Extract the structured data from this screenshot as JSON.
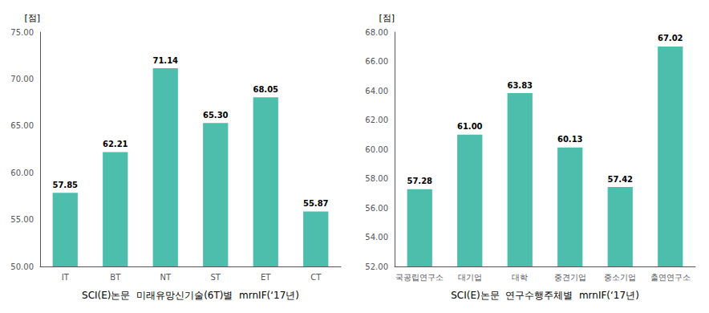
{
  "chart_data": [
    {
      "type": "bar",
      "categories": [
        "IT",
        "BT",
        "NT",
        "ST",
        "ET",
        "CT"
      ],
      "values": [
        57.85,
        62.21,
        71.14,
        65.3,
        68.05,
        55.87
      ],
      "value_labels": [
        "57.85",
        "62.21",
        "71.14",
        "65.30",
        "68.05",
        "55.87"
      ],
      "data_labels": true,
      "color": "#4DBDAC",
      "ylim": [
        50.0,
        75.0
      ],
      "yticks": [
        {
          "value": 50,
          "label": "50.00"
        },
        {
          "value": 55,
          "label": "55.00"
        },
        {
          "value": 60,
          "label": "60.00"
        },
        {
          "value": 65,
          "label": "65.00"
        },
        {
          "value": 70,
          "label": "70.00"
        },
        {
          "value": 75,
          "label": "75.00"
        }
      ],
      "ylabel": "[점]",
      "xlabel": "SCI(E)논문  미래유망신기술(6T)별  mrnIF(‘17년)",
      "grid": false
    },
    {
      "type": "bar",
      "categories": [
        "국공립연구소",
        "대기업",
        "대학",
        "중견기업",
        "중소기업",
        "출연연구소"
      ],
      "values": [
        57.28,
        61.0,
        63.83,
        60.13,
        57.42,
        67.02
      ],
      "value_labels": [
        "57.28",
        "61.00",
        "63.83",
        "60.13",
        "57.42",
        "67.02"
      ],
      "data_labels": true,
      "color": "#4DBDAC",
      "ylim": [
        52.0,
        68.0
      ],
      "yticks": [
        {
          "value": 52,
          "label": "52.00"
        },
        {
          "value": 54,
          "label": "54.00"
        },
        {
          "value": 56,
          "label": "56.00"
        },
        {
          "value": 58,
          "label": "58.00"
        },
        {
          "value": 60,
          "label": "60.00"
        },
        {
          "value": 62,
          "label": "62.00"
        },
        {
          "value": 64,
          "label": "64.00"
        },
        {
          "value": 66,
          "label": "66.00"
        },
        {
          "value": 68,
          "label": "68.00"
        }
      ],
      "ylabel": "[점]",
      "xlabel": "SCI(E)논문  연구수행주체별  mrnIF(‘17년)",
      "grid": false
    }
  ]
}
